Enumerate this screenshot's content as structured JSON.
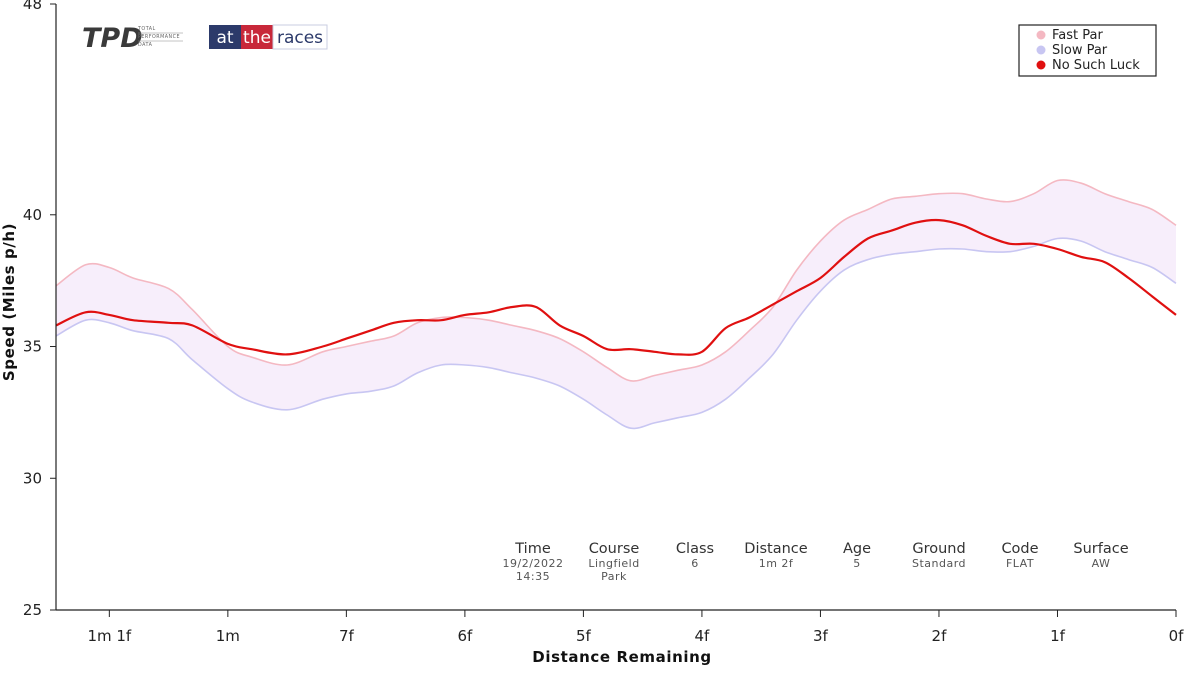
{
  "logos": {
    "tpd": {
      "main": "TPD",
      "sub": [
        "TOTAL",
        "PERFORMANCE",
        "DATA"
      ]
    },
    "atr": {
      "parts": [
        "at",
        "the",
        "races"
      ],
      "colors": [
        "#2c3a6a",
        "#c8283a",
        "#2c3a6a"
      ]
    }
  },
  "chart_data": {
    "type": "line",
    "xlabel": "Distance Remaining",
    "ylabel": "Speed (Miles p/h)",
    "ylim": [
      25,
      48
    ],
    "xlim": [
      9.45,
      0
    ],
    "yticks": [
      25,
      30,
      35,
      40,
      48
    ],
    "x_ticks": [
      {
        "label": "1m 1f",
        "value": 9
      },
      {
        "label": "1m",
        "value": 8
      },
      {
        "label": "7f",
        "value": 7
      },
      {
        "label": "6f",
        "value": 6
      },
      {
        "label": "5f",
        "value": 5
      },
      {
        "label": "4f",
        "value": 4
      },
      {
        "label": "3f",
        "value": 3
      },
      {
        "label": "2f",
        "value": 2
      },
      {
        "label": "1f",
        "value": 1
      },
      {
        "label": "0f",
        "value": 0
      }
    ],
    "x": [
      9.45,
      9.2,
      9.0,
      8.8,
      8.5,
      8.3,
      8.0,
      7.8,
      7.5,
      7.2,
      7.0,
      6.8,
      6.6,
      6.4,
      6.2,
      6.0,
      5.8,
      5.6,
      5.4,
      5.2,
      5.0,
      4.8,
      4.6,
      4.4,
      4.2,
      4.0,
      3.8,
      3.6,
      3.4,
      3.2,
      3.0,
      2.8,
      2.6,
      2.4,
      2.2,
      2.0,
      1.8,
      1.6,
      1.4,
      1.2,
      1.0,
      0.8,
      0.6,
      0.4,
      0.2,
      0.0
    ],
    "series": [
      {
        "name": "Fast Par",
        "color": "#f4b8c2",
        "values": [
          37.3,
          38.1,
          38.0,
          37.6,
          37.2,
          36.4,
          35.0,
          34.6,
          34.3,
          34.8,
          35.0,
          35.2,
          35.4,
          35.9,
          36.1,
          36.1,
          36.0,
          35.8,
          35.6,
          35.3,
          34.8,
          34.2,
          33.7,
          33.9,
          34.1,
          34.3,
          34.8,
          35.6,
          36.5,
          37.9,
          39.0,
          39.8,
          40.2,
          40.6,
          40.7,
          40.8,
          40.8,
          40.6,
          40.5,
          40.8,
          41.3,
          41.2,
          40.8,
          40.5,
          40.2,
          39.6
        ],
        "show_points": false
      },
      {
        "name": "Slow Par",
        "color": "#c8c6f2",
        "values": [
          35.4,
          36.0,
          35.9,
          35.6,
          35.3,
          34.5,
          33.4,
          32.9,
          32.6,
          33.0,
          33.2,
          33.3,
          33.5,
          34.0,
          34.3,
          34.3,
          34.2,
          34.0,
          33.8,
          33.5,
          33.0,
          32.4,
          31.9,
          32.1,
          32.3,
          32.5,
          33.0,
          33.8,
          34.7,
          36.0,
          37.1,
          37.9,
          38.3,
          38.5,
          38.6,
          38.7,
          38.7,
          38.6,
          38.6,
          38.8,
          39.1,
          39.0,
          38.6,
          38.3,
          38.0,
          37.4
        ],
        "show_points": false
      },
      {
        "name": "No Such Luck",
        "color": "#e01010",
        "values": [
          35.8,
          36.3,
          36.2,
          36.0,
          35.9,
          35.8,
          35.1,
          34.9,
          34.7,
          35.0,
          35.3,
          35.6,
          35.9,
          36.0,
          36.0,
          36.2,
          36.3,
          36.5,
          36.5,
          35.8,
          35.4,
          34.9,
          34.9,
          34.8,
          34.7,
          34.8,
          35.7,
          36.1,
          36.6,
          37.1,
          37.6,
          38.4,
          39.1,
          39.4,
          39.7,
          39.8,
          39.6,
          39.2,
          38.9,
          38.9,
          38.7,
          38.4,
          38.2,
          37.6,
          36.9,
          36.2
        ],
        "show_points": false
      }
    ],
    "fill_between": [
      "Fast Par",
      "Slow Par"
    ],
    "fill_color": "#f7eefb",
    "legend": {
      "placement": "top-right",
      "entries": [
        "Fast Par",
        "Slow Par",
        "No Such Luck"
      ]
    },
    "grid": false
  },
  "race_info": [
    {
      "label": "Time",
      "values": [
        "19/2/2022",
        "14:35"
      ]
    },
    {
      "label": "Course",
      "values": [
        "Lingfield",
        "Park"
      ]
    },
    {
      "label": "Class",
      "values": [
        "6"
      ]
    },
    {
      "label": "Distance",
      "values": [
        "1m 2f"
      ]
    },
    {
      "label": "Age",
      "values": [
        "5"
      ]
    },
    {
      "label": "Ground",
      "values": [
        "Standard"
      ]
    },
    {
      "label": "Code",
      "values": [
        "FLAT"
      ]
    },
    {
      "label": "Surface",
      "values": [
        "AW"
      ]
    }
  ]
}
